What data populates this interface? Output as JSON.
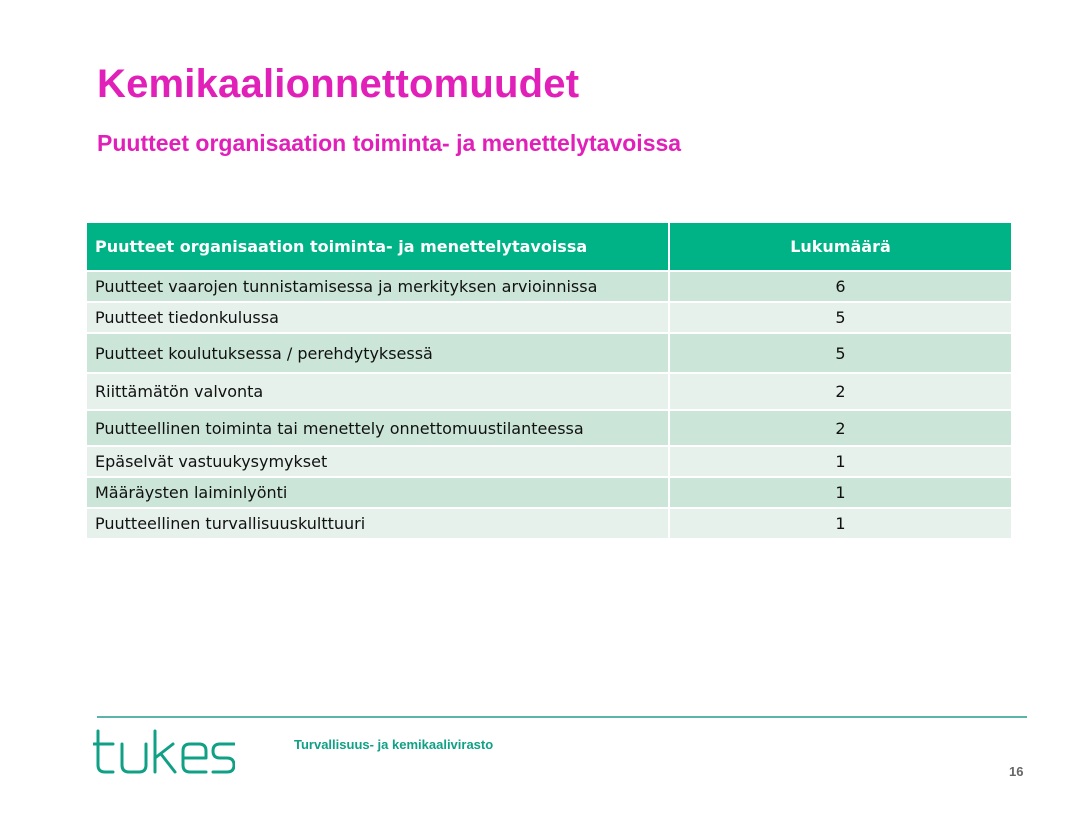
{
  "slide": {
    "title": "Kemikaalionnettomuudet",
    "subtitle": "Puutteet organisaation toiminta- ja menettelytavoissa",
    "page_number": "16"
  },
  "table": {
    "headers": {
      "description": "Puutteet organisaation toiminta- ja menettelytavoissa",
      "count": "Lukumäärä"
    },
    "rows": [
      {
        "label": "Puutteet vaarojen tunnistamisessa ja merkityksen arvioinnissa",
        "count": "6"
      },
      {
        "label": "Puutteet tiedonkulussa",
        "count": "5"
      },
      {
        "label": "Puutteet koulutuksessa / perehdytyksessä",
        "count": "5"
      },
      {
        "label": "Riittämätön valvonta",
        "count": "2"
      },
      {
        "label": "Puutteellinen toiminta tai menettely onnettomuustilanteessa",
        "count": "2"
      },
      {
        "label": "Epäselvät vastuukysymykset",
        "count": "1"
      },
      {
        "label": "Määräysten laiminlyönti",
        "count": "1"
      },
      {
        "label": "Puutteellinen turvallisuuskulttuuri",
        "count": "1"
      }
    ]
  },
  "footer": {
    "logo_text": "tukes",
    "agency_name": "Turvallisuus- ja kemikaalivirasto"
  },
  "colors": {
    "title": "#e020b8",
    "header_bg": "#00b386",
    "row_dark": "#cbe6d8",
    "row_light": "#e6f1ec",
    "brand": "#10a085"
  }
}
